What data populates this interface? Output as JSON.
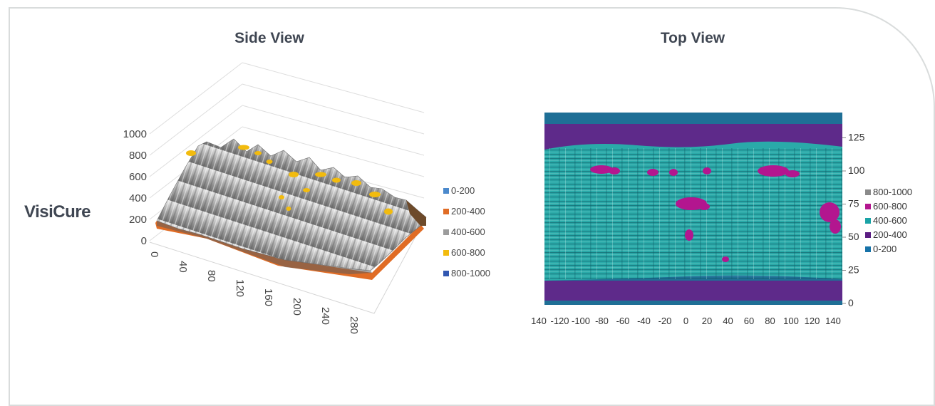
{
  "row_label": "VisiCure",
  "chart_data": [
    {
      "type": "surface",
      "title": "Side View",
      "z_ticks": [
        "0",
        "200",
        "400",
        "600",
        "800",
        "1000"
      ],
      "x_ticks": [
        "0",
        "40",
        "80",
        "120",
        "160",
        "200",
        "240",
        "280"
      ],
      "legend": [
        {
          "label": "0-200",
          "color": "#4b89cc"
        },
        {
          "label": "200-400",
          "color": "#e06c25"
        },
        {
          "label": "400-600",
          "color": "#9c9c9c"
        },
        {
          "label": "600-800",
          "color": "#f2bb0e"
        },
        {
          "label": "800-1000",
          "color": "#3157b1"
        }
      ]
    },
    {
      "type": "heatmap",
      "title": "Top View",
      "x_ticks": [
        "140",
        "-120",
        "-100",
        "-80",
        "-60",
        "-40",
        "-20",
        "0",
        "20",
        "40",
        "60",
        "80",
        "100",
        "120",
        "140"
      ],
      "y_ticks": [
        "0",
        "25",
        "50",
        "75",
        "100",
        "125"
      ],
      "legend": [
        {
          "label": "800-1000",
          "color": "#8a8a8a"
        },
        {
          "label": "600-800",
          "color": "#b3168f"
        },
        {
          "label": "400-600",
          "color": "#1aa3a6"
        },
        {
          "label": "200-400",
          "color": "#5b1d83"
        },
        {
          "label": "0-200",
          "color": "#1672a8"
        }
      ],
      "colors": {
        "background": "#1f6f96",
        "band": "#5e2a8a",
        "body": "#2aaaa9",
        "hot": "#b3168f"
      }
    }
  ]
}
